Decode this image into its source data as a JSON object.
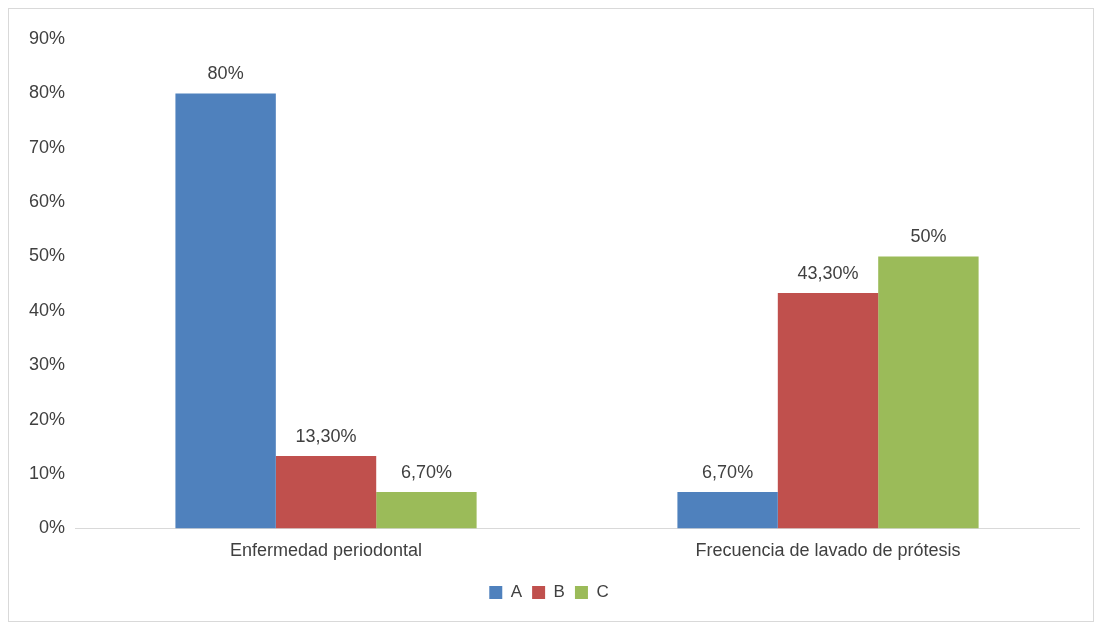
{
  "chart_data": {
    "type": "bar",
    "categories": [
      "Enfermedad periodontal",
      "Frecuencia de lavado de prótesis"
    ],
    "series": [
      {
        "name": "A",
        "color": "#4f81bd",
        "values": [
          80,
          6.7
        ],
        "value_labels": [
          "80%",
          "6,70%"
        ]
      },
      {
        "name": "B",
        "color": "#c0504d",
        "values": [
          13.3,
          43.3
        ],
        "value_labels": [
          "13,30%",
          "43,30%"
        ]
      },
      {
        "name": "C",
        "color": "#9bbb59",
        "values": [
          6.7,
          50
        ],
        "value_labels": [
          "6,70%",
          "50%"
        ]
      }
    ],
    "ylim": [
      0,
      90
    ],
    "yticks": [
      {
        "value": 0,
        "label": "0%"
      },
      {
        "value": 10,
        "label": "10%"
      },
      {
        "value": 20,
        "label": "20%"
      },
      {
        "value": 30,
        "label": "30%"
      },
      {
        "value": 40,
        "label": "40%"
      },
      {
        "value": 50,
        "label": "50%"
      },
      {
        "value": 60,
        "label": "60%"
      },
      {
        "value": 70,
        "label": "70%"
      },
      {
        "value": 80,
        "label": "80%"
      },
      {
        "value": 90,
        "label": "90%"
      }
    ],
    "grid": false,
    "legend": "bottom"
  }
}
